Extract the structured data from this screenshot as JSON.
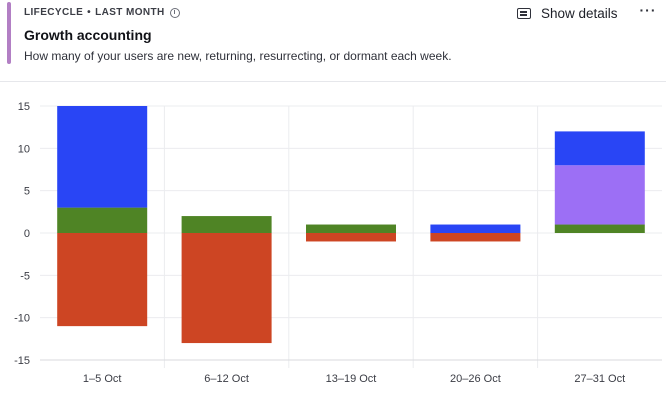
{
  "header": {
    "eyebrow_label": "LIFECYCLE",
    "eyebrow_separator": "•",
    "eyebrow_period": "LAST MONTH",
    "title": "Growth accounting",
    "subtitle": "How many of your users are new, returning, resurrecting, or dormant each week.",
    "show_details_label": "Show details",
    "more_label": "···"
  },
  "colors": {
    "accent": "#b27fc4",
    "new": "#2945f5",
    "returning": "#4f8425",
    "resurrecting": "#9c6ff5",
    "dormant": "#cd4523"
  },
  "chart_data": {
    "type": "bar",
    "stacked": true,
    "categories": [
      "1–5 Oct",
      "6–12 Oct",
      "13–19 Oct",
      "20–26 Oct",
      "27–31 Oct"
    ],
    "series": [
      {
        "key": "returning",
        "values": [
          3,
          2,
          1,
          0,
          1
        ],
        "color": "#4f8425"
      },
      {
        "key": "resurrecting",
        "values": [
          0,
          0,
          0,
          0,
          7
        ],
        "color": "#9c6ff5"
      },
      {
        "key": "new",
        "values": [
          12,
          0,
          0,
          1,
          4
        ],
        "color": "#2945f5"
      },
      {
        "key": "dormant",
        "values": [
          -11,
          -13,
          -1,
          -1,
          0
        ],
        "color": "#cd4523"
      }
    ],
    "yticks": [
      15,
      10,
      5,
      0,
      -5,
      -10,
      -15
    ],
    "ylim": [
      -15,
      15
    ],
    "grid": true,
    "xlabel": "",
    "ylabel": ""
  }
}
